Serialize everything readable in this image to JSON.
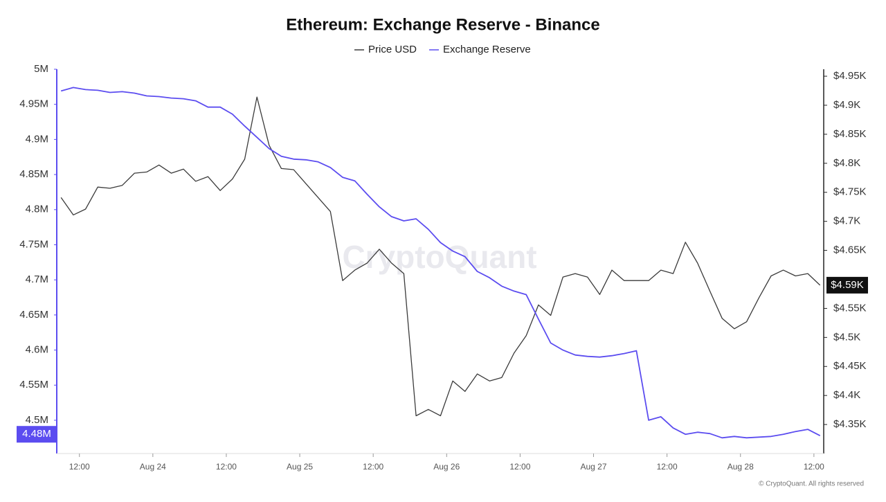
{
  "chart_data": {
    "type": "line",
    "title": "Ethereum: Exchange Reserve - Binance",
    "watermark": "CryptoQuant",
    "footer": "© CryptoQuant. All rights reserved",
    "x": [
      -15,
      -13,
      -11,
      -9,
      -7,
      -5,
      -3,
      -1,
      1,
      3,
      5,
      7,
      9,
      11,
      13,
      15,
      17,
      19,
      21,
      23,
      25,
      27,
      29,
      31,
      33,
      35,
      37,
      39,
      41,
      43,
      45,
      47,
      49,
      51,
      53,
      55,
      57,
      59,
      61,
      63,
      65,
      67,
      69,
      71,
      73,
      75,
      77,
      79,
      81,
      83,
      85,
      87,
      89,
      91,
      93,
      95,
      97,
      99,
      101,
      103,
      105,
      107,
      109
    ],
    "xlim": [
      -15.7,
      109.6
    ],
    "xticks": [
      {
        "value": -12,
        "label": "12:00"
      },
      {
        "value": 0,
        "label": "Aug 24"
      },
      {
        "value": 12,
        "label": "12:00"
      },
      {
        "value": 24,
        "label": "Aug 25"
      },
      {
        "value": 36,
        "label": "12:00"
      },
      {
        "value": 48,
        "label": "Aug 26"
      },
      {
        "value": 60,
        "label": "12:00"
      },
      {
        "value": 72,
        "label": "Aug 27"
      },
      {
        "value": 84,
        "label": "12:00"
      },
      {
        "value": 96,
        "label": "Aug 28"
      },
      {
        "value": 108,
        "label": "12:00"
      }
    ],
    "ylim": [
      4452600,
      5000000
    ],
    "yticks": [
      {
        "value": 4500000,
        "label": "4.5M"
      },
      {
        "value": 4550000,
        "label": "4.55M"
      },
      {
        "value": 4600000,
        "label": "4.6M"
      },
      {
        "value": 4650000,
        "label": "4.65M"
      },
      {
        "value": 4700000,
        "label": "4.7M"
      },
      {
        "value": 4750000,
        "label": "4.75M"
      },
      {
        "value": 4800000,
        "label": "4.8M"
      },
      {
        "value": 4850000,
        "label": "4.85M"
      },
      {
        "value": 4900000,
        "label": "4.9M"
      },
      {
        "value": 4950000,
        "label": "4.95M"
      },
      {
        "value": 5000000,
        "label": "5M"
      }
    ],
    "y2lim": [
      4300,
      4962
    ],
    "y2ticks": [
      {
        "value": 4350,
        "label": "$4.35K"
      },
      {
        "value": 4400,
        "label": "$4.4K"
      },
      {
        "value": 4450,
        "label": "$4.45K"
      },
      {
        "value": 4500,
        "label": "$4.5K"
      },
      {
        "value": 4550,
        "label": "$4.55K"
      },
      {
        "value": 4650,
        "label": "$4.65K"
      },
      {
        "value": 4700,
        "label": "$4.7K"
      },
      {
        "value": 4750,
        "label": "$4.75K"
      },
      {
        "value": 4800,
        "label": "$4.8K"
      },
      {
        "value": 4850,
        "label": "$4.85K"
      },
      {
        "value": 4900,
        "label": "$4.9K"
      },
      {
        "value": 4950,
        "label": "$4.95K"
      }
    ],
    "series": [
      {
        "name": "Price USD",
        "color": "#3a3a3a",
        "axis": "y2",
        "values": [
          4741,
          4711,
          4721,
          4759,
          4757,
          4762,
          4783,
          4785,
          4797,
          4783,
          4790,
          4769,
          4777,
          4753,
          4773,
          4807,
          4914,
          4831,
          4791,
          4789,
          4765,
          4741,
          4717,
          4598,
          4616,
          4628,
          4652,
          4628,
          4610,
          4365,
          4376,
          4365,
          4425,
          4407,
          4437,
          4425,
          4431,
          4473,
          4503,
          4556,
          4538,
          4604,
          4610,
          4604,
          4574,
          4616,
          4598,
          4598,
          4598,
          4616,
          4610,
          4664,
          4628,
          4580,
          4533,
          4515,
          4527,
          4568,
          4606,
          4616,
          4606,
          4610,
          4590
        ]
      },
      {
        "name": "Exchange Reserve",
        "color": "#5b4cf0",
        "axis": "y",
        "values": [
          4969000,
          4974000,
          4971000,
          4970000,
          4967000,
          4968000,
          4966000,
          4962000,
          4961000,
          4959000,
          4958000,
          4955000,
          4946000,
          4946000,
          4936000,
          4919000,
          4903000,
          4887000,
          4876000,
          4872000,
          4871000,
          4868000,
          4860000,
          4846000,
          4841000,
          4822000,
          4804000,
          4790000,
          4784000,
          4787000,
          4772000,
          4753000,
          4741000,
          4733000,
          4712000,
          4703000,
          4691000,
          4684000,
          4679000,
          4644000,
          4610000,
          4600000,
          4593000,
          4591000,
          4590000,
          4592000,
          4595000,
          4599000,
          4500000,
          4505000,
          4489000,
          4480000,
          4483000,
          4481000,
          4475000,
          4477000,
          4475000,
          4476000,
          4477000,
          4480000,
          4484000,
          4487000,
          4478000
        ]
      }
    ],
    "annotations": [
      {
        "label": "4.48M",
        "value": 4480000,
        "axis": "y",
        "color": "#5b4cf0"
      },
      {
        "label": "$4.59K",
        "value": 4590,
        "axis": "y2",
        "color": "#111111"
      }
    ]
  }
}
